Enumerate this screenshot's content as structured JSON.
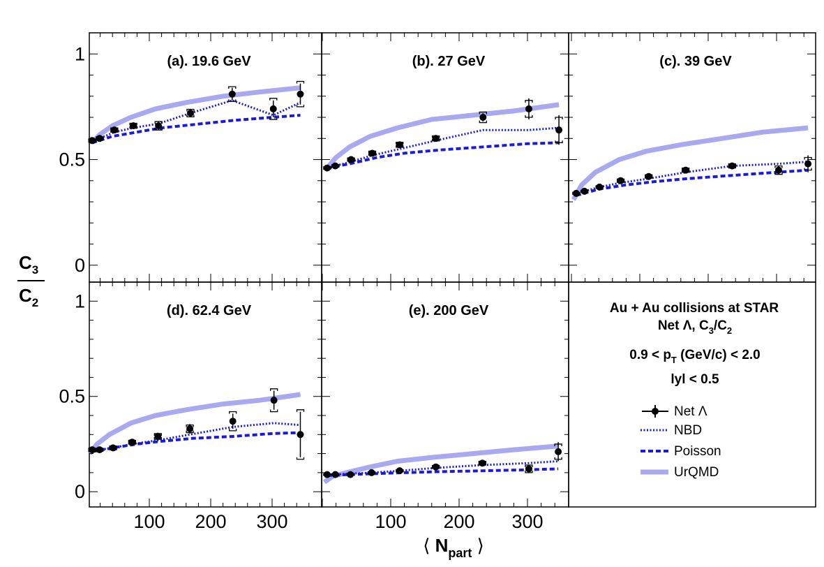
{
  "chart_data": {
    "type": "scatter",
    "xlabel_main": "N",
    "xlabel_sub": "part",
    "xlabel_left": "⟨",
    "xlabel_right": "⟩",
    "ylabel_num_main": "C",
    "ylabel_num_sub": "3",
    "ylabel_den_main": "C",
    "ylabel_den_sub": "2",
    "xlim": [
      0,
      360
    ],
    "ylim": [
      -0.08,
      1.1
    ],
    "yticks": [
      0,
      0.5,
      1
    ],
    "ytick_labels": [
      "0",
      "0.5",
      "1"
    ],
    "xticks": [
      100,
      200,
      300
    ],
    "xtick_labels": [
      "100",
      "200",
      "300"
    ],
    "colors": {
      "data": "#000000",
      "nbd": "#1a1adf",
      "poisson": "#1a1adf",
      "urqmd": "#a9a9f2"
    },
    "info": {
      "line1": "Au + Au collisions at STAR",
      "line2_main": "Net Λ, C",
      "line2_sub1": "3",
      "line2_mid": "/C",
      "line2_sub2": "2",
      "line3_a": "0.9 < p",
      "line3_sub": "T",
      "line3_b": " (GeV/c) < 2.0",
      "line4": "lyl < 0.5"
    },
    "legend": [
      {
        "key": "data",
        "label": "Net Λ"
      },
      {
        "key": "nbd",
        "label": "NBD"
      },
      {
        "key": "poisson",
        "label": "Poisson"
      },
      {
        "key": "urqmd",
        "label": "UrQMD"
      }
    ],
    "panels": [
      {
        "title": "(a). 19.6 GeV",
        "data": {
          "x": [
            7,
            19,
            43,
            74,
            115,
            167,
            235,
            302,
            346
          ],
          "y": [
            0.59,
            0.6,
            0.64,
            0.66,
            0.66,
            0.72,
            0.81,
            0.74,
            0.81
          ],
          "stat": [
            0.01,
            0.01,
            0.015,
            0.015,
            0.02,
            0.02,
            0.03,
            0.04,
            0.05
          ],
          "sys": [
            0.008,
            0.008,
            0.01,
            0.012,
            0.02,
            0.018,
            0.035,
            0.05,
            0.06
          ]
        },
        "nbd": {
          "x": [
            7,
            19,
            43,
            74,
            115,
            167,
            235,
            302,
            346
          ],
          "y": [
            0.58,
            0.6,
            0.63,
            0.65,
            0.67,
            0.72,
            0.78,
            0.71,
            0.77
          ]
        },
        "poisson": {
          "x": [
            7,
            40,
            80,
            120,
            170,
            235,
            300,
            346
          ],
          "y": [
            0.58,
            0.61,
            0.63,
            0.65,
            0.665,
            0.685,
            0.7,
            0.71
          ]
        },
        "urqmd": {
          "x": [
            7,
            20,
            40,
            70,
            110,
            160,
            220,
            280,
            346
          ],
          "y": [
            0.58,
            0.62,
            0.66,
            0.7,
            0.74,
            0.77,
            0.8,
            0.82,
            0.84
          ]
        }
      },
      {
        "title": "(b). 27 GeV",
        "data": {
          "x": [
            7,
            19,
            42,
            73,
            113,
            166,
            235,
            302,
            346
          ],
          "y": [
            0.46,
            0.47,
            0.5,
            0.53,
            0.57,
            0.6,
            0.7,
            0.74,
            0.64
          ],
          "stat": [
            0.008,
            0.008,
            0.01,
            0.01,
            0.012,
            0.012,
            0.02,
            0.05,
            0.07
          ],
          "sys": [
            0.006,
            0.006,
            0.008,
            0.01,
            0.012,
            0.012,
            0.025,
            0.04,
            0.06
          ]
        },
        "nbd": {
          "x": [
            7,
            19,
            42,
            73,
            113,
            166,
            235,
            302,
            346
          ],
          "y": [
            0.46,
            0.47,
            0.49,
            0.52,
            0.55,
            0.59,
            0.64,
            0.64,
            0.65
          ]
        },
        "poisson": {
          "x": [
            7,
            40,
            80,
            120,
            170,
            235,
            300,
            346
          ],
          "y": [
            0.46,
            0.48,
            0.51,
            0.53,
            0.545,
            0.56,
            0.575,
            0.58
          ]
        },
        "urqmd": {
          "x": [
            7,
            20,
            40,
            70,
            110,
            160,
            220,
            280,
            346
          ],
          "y": [
            0.46,
            0.51,
            0.56,
            0.61,
            0.65,
            0.69,
            0.71,
            0.73,
            0.76
          ]
        }
      },
      {
        "title": "(c). 39 GeV",
        "data": {
          "x": [
            7,
            19,
            41,
            72,
            113,
            167,
            235,
            303,
            346
          ],
          "y": [
            0.34,
            0.35,
            0.37,
            0.4,
            0.42,
            0.45,
            0.47,
            0.45,
            0.48
          ],
          "stat": [
            0.008,
            0.008,
            0.008,
            0.01,
            0.01,
            0.012,
            0.012,
            0.02,
            0.04
          ],
          "sys": [
            0.005,
            0.005,
            0.006,
            0.008,
            0.008,
            0.01,
            0.01,
            0.02,
            0.03
          ]
        },
        "nbd": {
          "x": [
            7,
            19,
            41,
            72,
            113,
            167,
            235,
            303,
            346
          ],
          "y": [
            0.33,
            0.35,
            0.37,
            0.39,
            0.41,
            0.44,
            0.47,
            0.48,
            0.49
          ]
        },
        "poisson": {
          "x": [
            7,
            40,
            80,
            120,
            170,
            235,
            300,
            346
          ],
          "y": [
            0.33,
            0.36,
            0.38,
            0.395,
            0.41,
            0.425,
            0.44,
            0.45
          ]
        },
        "urqmd": {
          "x": [
            3,
            15,
            35,
            70,
            110,
            160,
            220,
            280,
            346
          ],
          "y": [
            0.31,
            0.38,
            0.44,
            0.5,
            0.54,
            0.57,
            0.6,
            0.63,
            0.65
          ]
        }
      },
      {
        "title": "(d). 62.4 GeV",
        "data": {
          "x": [
            7,
            19,
            41,
            72,
            114,
            166,
            236,
            303,
            346
          ],
          "y": [
            0.22,
            0.22,
            0.23,
            0.26,
            0.29,
            0.33,
            0.37,
            0.48,
            0.3
          ],
          "stat": [
            0.01,
            0.01,
            0.012,
            0.012,
            0.02,
            0.025,
            0.04,
            0.05,
            0.12
          ],
          "sys": [
            0.008,
            0.008,
            0.01,
            0.01,
            0.015,
            0.02,
            0.05,
            0.06,
            0.13
          ]
        },
        "nbd": {
          "x": [
            7,
            19,
            41,
            72,
            114,
            166,
            236,
            303,
            346
          ],
          "y": [
            0.21,
            0.22,
            0.23,
            0.25,
            0.27,
            0.3,
            0.34,
            0.36,
            0.35
          ]
        },
        "poisson": {
          "x": [
            7,
            40,
            80,
            120,
            170,
            236,
            300,
            346
          ],
          "y": [
            0.21,
            0.23,
            0.25,
            0.265,
            0.28,
            0.29,
            0.305,
            0.31
          ]
        },
        "urqmd": {
          "x": [
            3,
            15,
            35,
            70,
            110,
            160,
            220,
            280,
            346
          ],
          "y": [
            0.2,
            0.25,
            0.3,
            0.36,
            0.4,
            0.43,
            0.46,
            0.48,
            0.51
          ]
        }
      },
      {
        "title": "(e). 200 GeV",
        "data": {
          "x": [
            7,
            19,
            41,
            72,
            113,
            166,
            234,
            302,
            345
          ],
          "y": [
            0.09,
            0.09,
            0.09,
            0.1,
            0.11,
            0.13,
            0.15,
            0.12,
            0.21
          ],
          "stat": [
            0.005,
            0.005,
            0.005,
            0.006,
            0.008,
            0.01,
            0.012,
            0.02,
            0.05
          ],
          "sys": [
            0.004,
            0.004,
            0.004,
            0.005,
            0.006,
            0.008,
            0.01,
            0.02,
            0.04
          ]
        },
        "nbd": {
          "x": [
            7,
            19,
            41,
            72,
            113,
            166,
            234,
            302,
            345
          ],
          "y": [
            0.09,
            0.09,
            0.095,
            0.1,
            0.11,
            0.125,
            0.14,
            0.15,
            0.16
          ]
        },
        "poisson": {
          "x": [
            7,
            40,
            80,
            120,
            170,
            234,
            300,
            345
          ],
          "y": [
            0.085,
            0.09,
            0.095,
            0.1,
            0.105,
            0.11,
            0.115,
            0.12
          ]
        },
        "urqmd": {
          "x": [
            3,
            15,
            35,
            70,
            110,
            160,
            220,
            280,
            345
          ],
          "y": [
            0.05,
            0.08,
            0.1,
            0.13,
            0.16,
            0.18,
            0.2,
            0.22,
            0.24
          ]
        }
      }
    ]
  }
}
